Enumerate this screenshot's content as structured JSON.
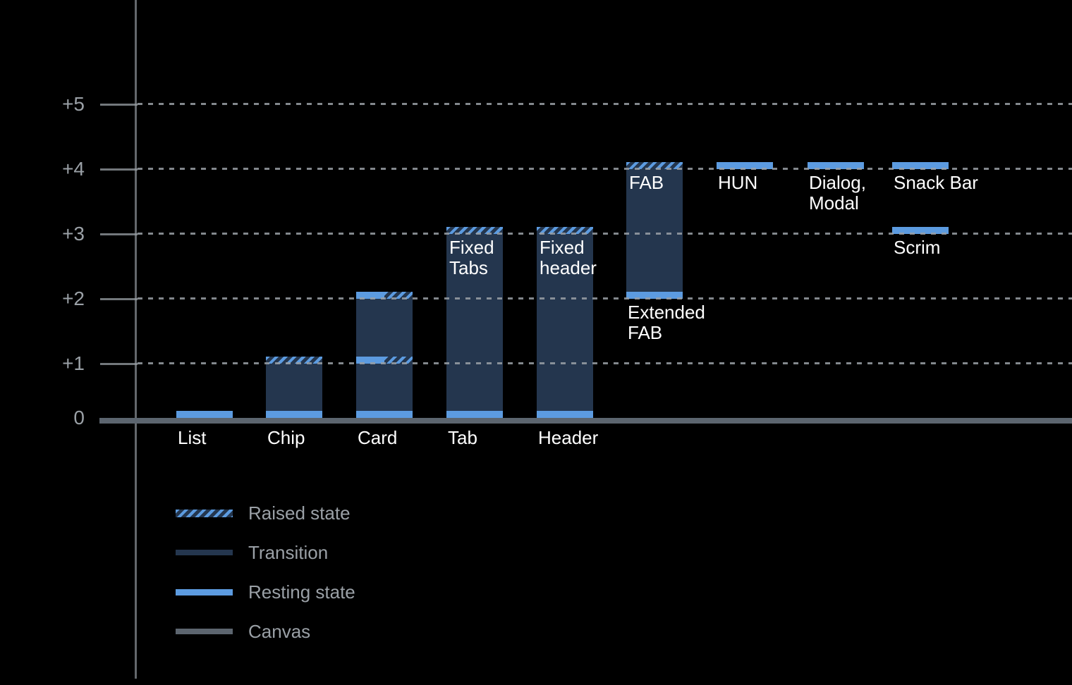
{
  "colors": {
    "background": "#000000",
    "resting": "#5C9BE0",
    "transition": "#24364E",
    "canvas": "#5C656F",
    "axis": "#9AA0A6",
    "grid": "#9AA0A6",
    "bar_label": "#FFFFFF",
    "legend_text": "#9AA0A6"
  },
  "chart_data": {
    "type": "bar",
    "title": "",
    "xlabel": "",
    "ylabel": "",
    "description": "Material elevation diagram: UI components shown as floating/stacked bars of elevation level above the canvas, with resting state, transition range and raised state per component.",
    "grid": "dotted horizontal gridlines at each elevation level, drawn over bars",
    "y_axis": {
      "range": [
        0,
        5
      ],
      "ticks": [
        {
          "label": "+5",
          "level": 5
        },
        {
          "label": "+4",
          "level": 4
        },
        {
          "label": "+3",
          "level": 3
        },
        {
          "label": "+2",
          "level": 2
        },
        {
          "label": "+1",
          "level": 1
        },
        {
          "label": "0",
          "level": 0
        }
      ]
    },
    "bars": [
      {
        "id": "list",
        "col": 0,
        "axis_label": "List",
        "segments": [
          {
            "kind": "resting",
            "level": 0
          }
        ]
      },
      {
        "id": "chip",
        "col": 1,
        "axis_label": "Chip",
        "segments": [
          {
            "kind": "resting",
            "level": 0
          },
          {
            "kind": "transition",
            "from": 0,
            "to": 1
          },
          {
            "kind": "raised",
            "level": 1
          }
        ]
      },
      {
        "id": "card",
        "col": 2,
        "axis_label": "Card",
        "segments": [
          {
            "kind": "resting",
            "level": 0
          },
          {
            "kind": "transition",
            "from": 0,
            "to": 1
          },
          {
            "kind": "resting-raised",
            "level": 1
          },
          {
            "kind": "transition",
            "from": 1,
            "to": 2
          },
          {
            "kind": "resting-raised",
            "level": 2
          }
        ]
      },
      {
        "id": "tab",
        "col": 3,
        "axis_label": "Tab",
        "inner_label": [
          "Fixed",
          "Tabs"
        ],
        "inner_label_level": 3,
        "segments": [
          {
            "kind": "resting",
            "level": 0
          },
          {
            "kind": "transition",
            "from": 0,
            "to": 3
          },
          {
            "kind": "raised",
            "level": 3
          }
        ]
      },
      {
        "id": "header",
        "col": 4,
        "axis_label": "Header",
        "inner_label": [
          "Fixed",
          "header"
        ],
        "inner_label_level": 3,
        "segments": [
          {
            "kind": "resting",
            "level": 0
          },
          {
            "kind": "transition",
            "from": 0,
            "to": 3
          },
          {
            "kind": "raised",
            "level": 3
          }
        ]
      },
      {
        "id": "extended-fab",
        "col": 5,
        "inner_label": [
          "FAB"
        ],
        "inner_label_level": 4,
        "below_label": [
          "Extended",
          "FAB"
        ],
        "below_label_level": 2,
        "segments": [
          {
            "kind": "resting",
            "level": 2
          },
          {
            "kind": "transition",
            "from": 2,
            "to": 4
          },
          {
            "kind": "raised",
            "level": 4
          }
        ]
      },
      {
        "id": "hun",
        "col": 6,
        "below_label": [
          "HUN"
        ],
        "below_label_level": 4,
        "segments": [
          {
            "kind": "resting",
            "level": 4
          }
        ]
      },
      {
        "id": "dialog-modal",
        "col": 7,
        "below_label": [
          "Dialog,",
          "Modal"
        ],
        "below_label_level": 4,
        "segments": [
          {
            "kind": "resting",
            "level": 4
          }
        ]
      },
      {
        "id": "snack-bar",
        "col": 8,
        "below_label": [
          "Snack Bar"
        ],
        "below_label_level": 4,
        "segments": [
          {
            "kind": "resting",
            "level": 4
          }
        ]
      },
      {
        "id": "scrim",
        "col": 8,
        "below_label": [
          "Scrim"
        ],
        "below_label_level": 3,
        "segments": [
          {
            "kind": "resting",
            "level": 3
          }
        ]
      }
    ],
    "legend": {
      "position": "bottom-left",
      "items": [
        {
          "kind": "raised",
          "label": "Raised state"
        },
        {
          "kind": "transition",
          "label": "Transition"
        },
        {
          "kind": "resting",
          "label": "Resting state"
        },
        {
          "kind": "canvas",
          "label": "Canvas"
        }
      ]
    }
  }
}
